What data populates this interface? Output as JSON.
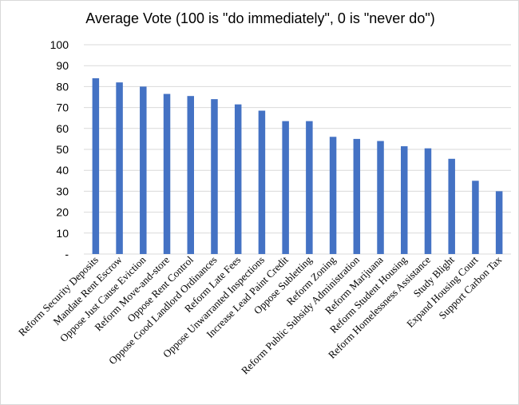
{
  "chart_data": {
    "type": "bar",
    "title": "Average Vote (100 is \"do immediately\", 0 is \"never do\")",
    "xlabel": "",
    "ylabel": "",
    "ylim": [
      0,
      100
    ],
    "yticks": [
      0,
      10,
      20,
      30,
      40,
      50,
      60,
      70,
      80,
      90,
      100
    ],
    "ytick_labels": [
      "-",
      "10",
      "20",
      "30",
      "40",
      "50",
      "60",
      "70",
      "80",
      "90",
      "100"
    ],
    "grid": true,
    "legend": "none",
    "bar_color": "#4472c4",
    "categories": [
      "Reform Security Deposits",
      "Mandate Rent Escrow",
      "Oppose Just Cause Eviction",
      "Reform Move-and-store",
      "Oppose Rent Control",
      "Oppose Good Landlord Ordinances",
      "Reform Late Fees",
      "Oppose Unwarranted Inspections",
      "Increase Lead Paint Credit",
      "Oppose Subletting",
      "Reform Zoning",
      "Reform Public Subsidy Administration",
      "Reform Marijuana",
      "Reform Student Housing",
      "Reform Homelessness Assistance",
      "Study Blight",
      "Expand Housing Court",
      "Support Carbon Tax"
    ],
    "values": [
      84,
      82,
      80,
      76.5,
      75.5,
      74,
      71.5,
      68.5,
      63.5,
      63.5,
      56,
      55,
      54,
      51.5,
      50.5,
      45.5,
      35,
      30
    ]
  }
}
